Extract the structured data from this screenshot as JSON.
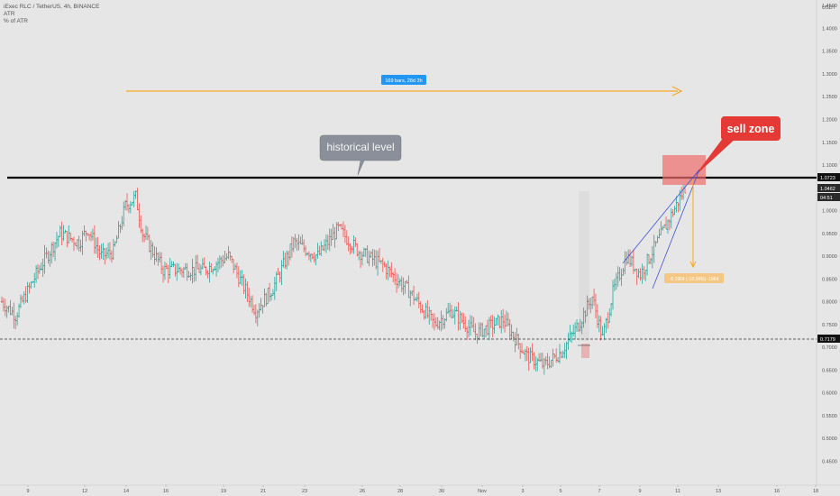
{
  "header": {
    "symbol_line": "iExec RLC / TetherUS, 4h, BINANCE",
    "indicators": [
      "ATR",
      "% of ATR"
    ]
  },
  "axis": {
    "currency": "USDT",
    "price_ticks": [
      "1.5000",
      "1.4500",
      "1.4000",
      "1.3500",
      "1.3000",
      "1.2500",
      "1.2000",
      "1.1500",
      "1.1000",
      "1.0500",
      "1.0000",
      "0.9500",
      "0.9000",
      "0.8500",
      "0.8000",
      "0.7500",
      "0.7000",
      "0.6500",
      "0.6000",
      "0.5500",
      "0.5000",
      "0.4500"
    ],
    "date_ticks": [
      "9",
      "12",
      "14",
      "16",
      "19",
      "21",
      "23",
      "26",
      "28",
      "30",
      "Nov",
      "3",
      "5",
      "7",
      "9",
      "11",
      "13",
      "16",
      "18"
    ]
  },
  "price_labels": {
    "resistance": "1.0723",
    "last": "1.0462",
    "countdown": "04:51",
    "support": "0.7179"
  },
  "annotations": {
    "range_label": "169 bars, 28d 3h",
    "historical_label": "historical level",
    "sell_label": "sell zone",
    "measure_label": "-0.1964 (-18.34%) -1964"
  },
  "colors": {
    "background": "#e6e6e6",
    "up_bar": "#26a69a",
    "down_bar": "#ef5350",
    "orange": "#f5a623",
    "blue_badge": "#2196f3",
    "sell_red": "#e53935",
    "sell_box": "#ef6b6b",
    "callout_gray": "#8a8f9a",
    "trend_blue": "#3f51e0"
  },
  "chart_data": {
    "type": "ohlc",
    "timeframe": "4h",
    "levels": {
      "resistance": 1.0723,
      "support": 0.7179
    },
    "anchors": [
      [
        0,
        0.8
      ],
      [
        8,
        0.77
      ],
      [
        20,
        0.86
      ],
      [
        34,
        0.95
      ],
      [
        45,
        0.93
      ],
      [
        50,
        0.96
      ],
      [
        58,
        0.9
      ],
      [
        65,
        0.91
      ],
      [
        72,
        1.01
      ],
      [
        78,
        1.03
      ],
      [
        82,
        0.95
      ],
      [
        94,
        0.87
      ],
      [
        104,
        0.87
      ],
      [
        118,
        0.87
      ],
      [
        132,
        0.9
      ],
      [
        148,
        0.78
      ],
      [
        158,
        0.83
      ],
      [
        170,
        0.93
      ],
      [
        184,
        0.9
      ],
      [
        196,
        0.96
      ],
      [
        208,
        0.91
      ],
      [
        222,
        0.88
      ],
      [
        238,
        0.82
      ],
      [
        252,
        0.75
      ],
      [
        262,
        0.78
      ],
      [
        276,
        0.73
      ],
      [
        292,
        0.76
      ],
      [
        306,
        0.68
      ],
      [
        316,
        0.66
      ],
      [
        326,
        0.69
      ],
      [
        336,
        0.75
      ],
      [
        344,
        0.81
      ],
      [
        350,
        0.72
      ],
      [
        356,
        0.82
      ],
      [
        364,
        0.9
      ],
      [
        372,
        0.86
      ],
      [
        386,
        0.96
      ],
      [
        398,
        1.05
      ]
    ]
  }
}
